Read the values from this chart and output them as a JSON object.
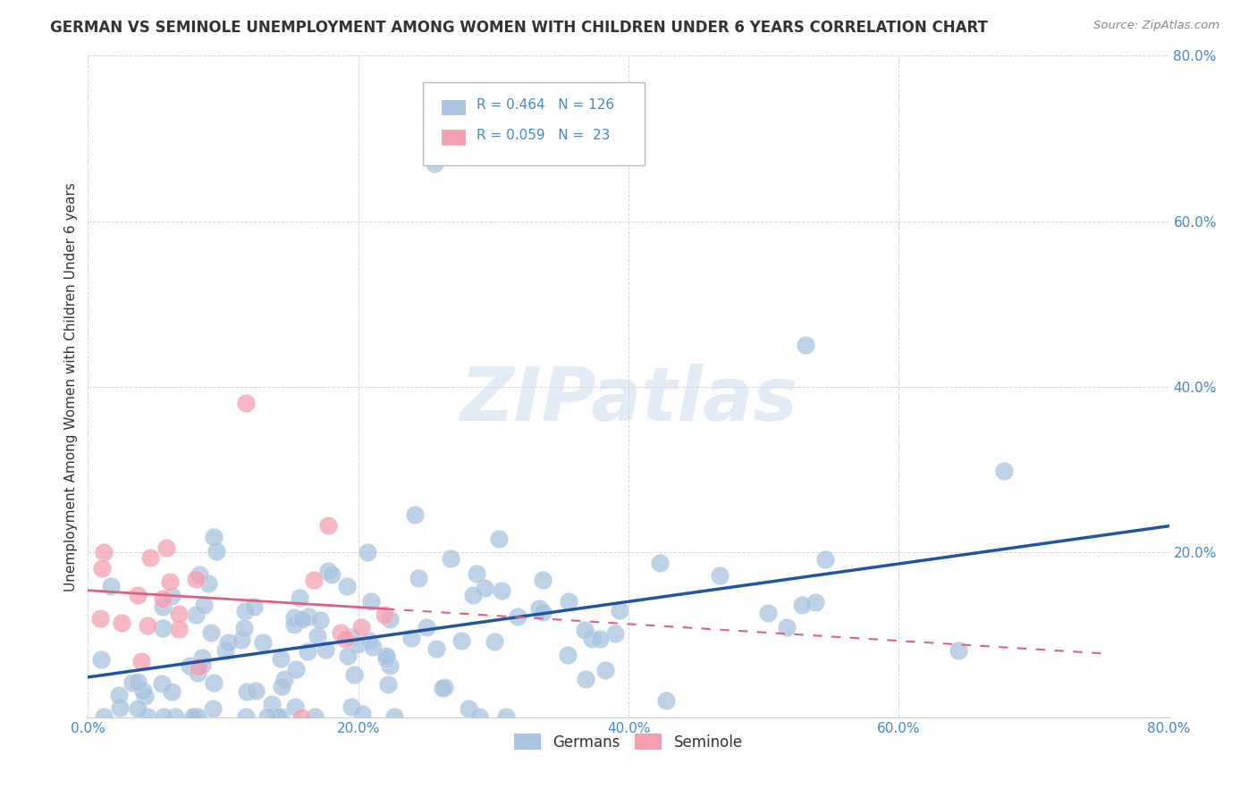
{
  "title": "GERMAN VS SEMINOLE UNEMPLOYMENT AMONG WOMEN WITH CHILDREN UNDER 6 YEARS CORRELATION CHART",
  "source": "Source: ZipAtlas.com",
  "ylabel": "Unemployment Among Women with Children Under 6 years",
  "xlim": [
    0.0,
    0.8
  ],
  "ylim": [
    0.0,
    0.8
  ],
  "xticks": [
    0.0,
    0.2,
    0.4,
    0.6,
    0.8
  ],
  "yticks": [
    0.0,
    0.2,
    0.4,
    0.6,
    0.8
  ],
  "xtick_labels": [
    "0.0%",
    "20.0%",
    "40.0%",
    "60.0%",
    "80.0%"
  ],
  "ytick_labels": [
    "",
    "20.0%",
    "40.0%",
    "60.0%",
    "80.0%"
  ],
  "german_R": 0.464,
  "german_N": 126,
  "seminole_R": 0.059,
  "seminole_N": 23,
  "german_color": "#a8c4e0",
  "seminole_color": "#f4a0b0",
  "german_line_color": "#2255a0",
  "seminole_line_color": "#e06080",
  "background_color": "#ffffff",
  "grid_color": "#cccccc",
  "tick_color": "#4488cc",
  "title_fontsize": 12,
  "axis_label_fontsize": 11,
  "tick_fontsize": 11,
  "watermark_text": "ZIPatlas"
}
